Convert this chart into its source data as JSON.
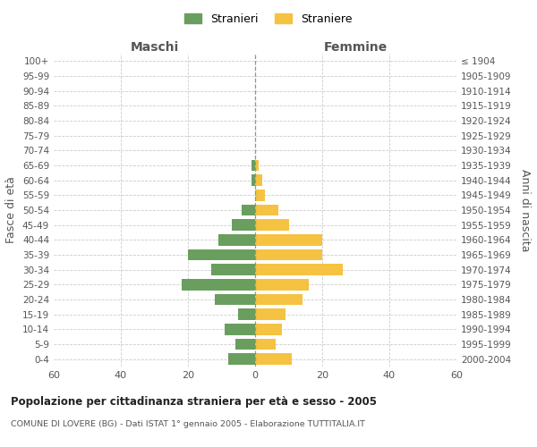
{
  "age_groups": [
    "100+",
    "95-99",
    "90-94",
    "85-89",
    "80-84",
    "75-79",
    "70-74",
    "65-69",
    "60-64",
    "55-59",
    "50-54",
    "45-49",
    "40-44",
    "35-39",
    "30-34",
    "25-29",
    "20-24",
    "15-19",
    "10-14",
    "5-9",
    "0-4"
  ],
  "birth_years": [
    "≤ 1904",
    "1905-1909",
    "1910-1914",
    "1915-1919",
    "1920-1924",
    "1925-1929",
    "1930-1934",
    "1935-1939",
    "1940-1944",
    "1945-1949",
    "1950-1954",
    "1955-1959",
    "1960-1964",
    "1965-1969",
    "1970-1974",
    "1975-1979",
    "1980-1984",
    "1985-1989",
    "1990-1994",
    "1995-1999",
    "2000-2004"
  ],
  "maschi": [
    0,
    0,
    0,
    0,
    0,
    0,
    0,
    1,
    1,
    0,
    4,
    7,
    11,
    20,
    13,
    22,
    12,
    5,
    9,
    6,
    8
  ],
  "femmine": [
    0,
    0,
    0,
    0,
    0,
    0,
    0,
    1,
    2,
    3,
    7,
    10,
    20,
    20,
    26,
    16,
    14,
    9,
    8,
    6,
    11
  ],
  "maschi_color": "#6a9e5f",
  "femmine_color": "#f5c242",
  "center_line_color": "#999966",
  "grid_color": "#cccccc",
  "bg_color": "#ffffff",
  "title": "Popolazione per cittadinanza straniera per età e sesso - 2005",
  "subtitle": "COMUNE DI LOVERE (BG) - Dati ISTAT 1° gennaio 2005 - Elaborazione TUTTITALIA.IT",
  "xlabel_left": "Maschi",
  "xlabel_right": "Femmine",
  "ylabel_left": "Fasce di età",
  "ylabel_right": "Anni di nascita",
  "xlim": 60,
  "legend_maschi": "Stranieri",
  "legend_femmine": "Straniere"
}
